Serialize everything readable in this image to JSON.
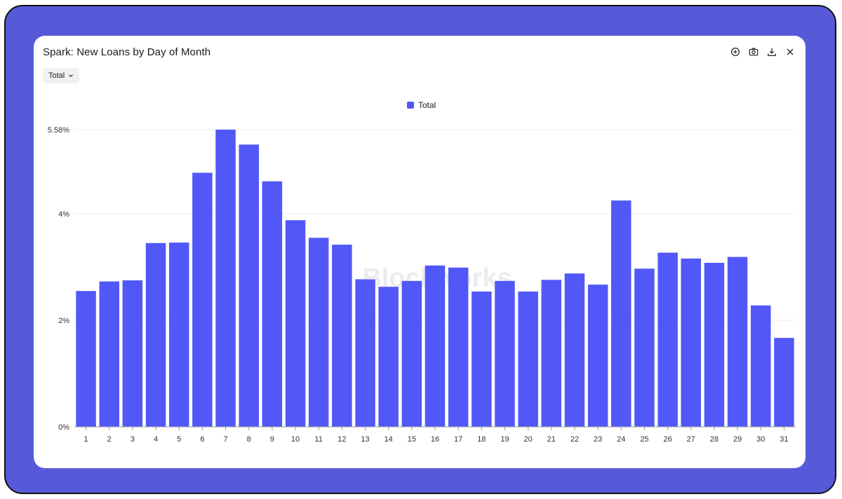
{
  "window": {
    "title": "Spark: New Loans by Day of Month",
    "toolbar": [
      {
        "name": "zoom-in-icon"
      },
      {
        "name": "camera-icon"
      },
      {
        "name": "download-icon"
      },
      {
        "name": "close-icon"
      }
    ],
    "dropdown": {
      "label": "Total"
    },
    "watermark": "Blockworks"
  },
  "colors": {
    "bar": "#5258f7",
    "frame": "#565ad9"
  },
  "chart_data": {
    "type": "bar",
    "categories": [
      "1",
      "2",
      "3",
      "4",
      "5",
      "6",
      "7",
      "8",
      "9",
      "10",
      "11",
      "12",
      "13",
      "14",
      "15",
      "16",
      "17",
      "18",
      "19",
      "20",
      "21",
      "22",
      "23",
      "24",
      "25",
      "26",
      "27",
      "28",
      "29",
      "30",
      "31"
    ],
    "series": [
      {
        "name": "Total",
        "values": [
          2.55,
          2.73,
          2.75,
          3.45,
          3.46,
          4.77,
          5.58,
          5.3,
          4.61,
          3.88,
          3.55,
          3.42,
          2.77,
          2.63,
          2.74,
          3.03,
          2.99,
          2.54,
          2.74,
          2.54,
          2.76,
          2.88,
          2.67,
          4.25,
          2.97,
          3.27,
          3.16,
          3.08,
          3.19,
          2.28,
          1.67
        ]
      }
    ],
    "yticks": [
      {
        "value": 0,
        "label": "0%"
      },
      {
        "value": 2,
        "label": "2%"
      },
      {
        "value": 4,
        "label": "4%"
      },
      {
        "value": 5.58,
        "label": "5.58%"
      }
    ],
    "ylim": [
      0,
      5.58
    ],
    "grid": true,
    "legend": "top-center"
  }
}
